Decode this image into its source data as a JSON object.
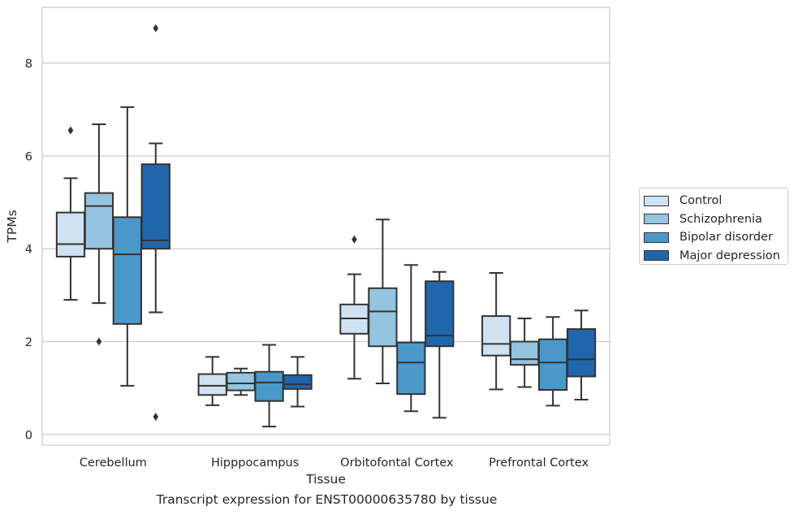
{
  "chart_data": {
    "type": "box",
    "title": "",
    "caption": "Transcript expression for ENST00000635780 by tissue",
    "xlabel": "Tissue",
    "ylabel": "TPMs",
    "ylim": [
      -0.23,
      9.2
    ],
    "yticks": [
      0,
      2,
      4,
      6,
      8
    ],
    "grid": true,
    "legend_position": "right, outside plot",
    "categories": [
      "Cerebellum",
      "Hipppocampus",
      "Orbitofontal Cortex",
      "Prefrontal Cortex"
    ],
    "series": [
      {
        "name": "Control",
        "color": "#d0e1f2",
        "boxes": [
          {
            "whisker_low": 2.9,
            "q1": 3.83,
            "median": 4.1,
            "q3": 4.78,
            "whisker_high": 5.52,
            "outliers": [
              6.55
            ]
          },
          {
            "whisker_low": 0.63,
            "q1": 0.85,
            "median": 1.05,
            "q3": 1.3,
            "whisker_high": 1.67,
            "outliers": []
          },
          {
            "whisker_low": 1.2,
            "q1": 2.17,
            "median": 2.5,
            "q3": 2.8,
            "whisker_high": 3.45,
            "outliers": [
              4.2
            ]
          },
          {
            "whisker_low": 0.97,
            "q1": 1.7,
            "median": 1.95,
            "q3": 2.55,
            "whisker_high": 3.48,
            "outliers": []
          }
        ]
      },
      {
        "name": "Schizophrenia",
        "color": "#94c4df",
        "boxes": [
          {
            "whisker_low": 2.83,
            "q1": 4.0,
            "median": 4.92,
            "q3": 5.2,
            "whisker_high": 6.68,
            "outliers": [
              2.0
            ]
          },
          {
            "whisker_low": 0.85,
            "q1": 0.95,
            "median": 1.1,
            "q3": 1.33,
            "whisker_high": 1.42,
            "outliers": []
          },
          {
            "whisker_low": 1.1,
            "q1": 1.9,
            "median": 2.65,
            "q3": 3.15,
            "whisker_high": 4.63,
            "outliers": []
          },
          {
            "whisker_low": 1.02,
            "q1": 1.5,
            "median": 1.62,
            "q3": 2.0,
            "whisker_high": 2.5,
            "outliers": []
          }
        ]
      },
      {
        "name": "Bipolar disorder",
        "color": "#4a98c9",
        "boxes": [
          {
            "whisker_low": 1.05,
            "q1": 2.38,
            "median": 3.88,
            "q3": 4.68,
            "whisker_high": 7.05,
            "outliers": []
          },
          {
            "whisker_low": 0.17,
            "q1": 0.72,
            "median": 1.12,
            "q3": 1.35,
            "whisker_high": 1.93,
            "outliers": []
          },
          {
            "whisker_low": 0.5,
            "q1": 0.87,
            "median": 1.55,
            "q3": 1.98,
            "whisker_high": 3.65,
            "outliers": []
          },
          {
            "whisker_low": 0.62,
            "q1": 0.96,
            "median": 1.55,
            "q3": 2.05,
            "whisker_high": 2.53,
            "outliers": []
          }
        ]
      },
      {
        "name": "Major depression",
        "color": "#2166ac",
        "boxes": [
          {
            "whisker_low": 2.63,
            "q1": 4.0,
            "median": 4.18,
            "q3": 5.82,
            "whisker_high": 6.27,
            "outliers": [
              8.75,
              0.38
            ]
          },
          {
            "whisker_low": 0.6,
            "q1": 0.98,
            "median": 1.08,
            "q3": 1.28,
            "whisker_high": 1.67,
            "outliers": []
          },
          {
            "whisker_low": 0.36,
            "q1": 1.9,
            "median": 2.13,
            "q3": 3.3,
            "whisker_high": 3.5,
            "outliers": []
          },
          {
            "whisker_low": 0.75,
            "q1": 1.25,
            "median": 1.62,
            "q3": 2.27,
            "whisker_high": 2.67,
            "outliers": []
          }
        ]
      }
    ]
  }
}
